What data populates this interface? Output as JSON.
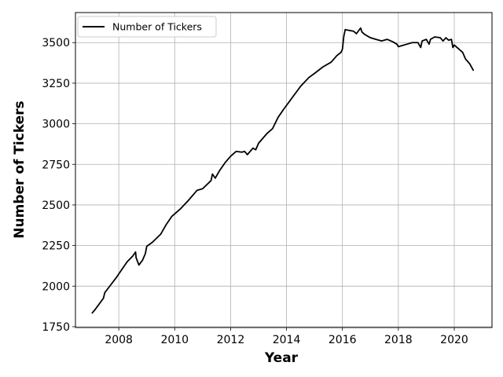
{
  "chart_data": {
    "type": "line",
    "title": "",
    "xlabel": "Year",
    "ylabel": "Number of Tickers",
    "xlim": [
      2006.45,
      2021.35
    ],
    "ylim": [
      1745,
      3685
    ],
    "x_ticks": [
      2008,
      2010,
      2012,
      2014,
      2016,
      2018,
      2020
    ],
    "y_ticks": [
      1750,
      2000,
      2250,
      2500,
      2750,
      3000,
      3250,
      3500
    ],
    "grid": true,
    "legend": {
      "placement": "upper-left",
      "entries": [
        "Number of Tickers"
      ]
    },
    "series": [
      {
        "name": "Number of Tickers",
        "color": "#000000",
        "x": [
          2007.05,
          2007.15,
          2007.3,
          2007.45,
          2007.5,
          2007.7,
          2007.9,
          2008.1,
          2008.3,
          2008.5,
          2008.6,
          2008.62,
          2008.72,
          2008.85,
          2008.95,
          2009.0,
          2009.2,
          2009.5,
          2009.7,
          2009.9,
          2010.2,
          2010.5,
          2010.8,
          2011.0,
          2011.3,
          2011.35,
          2011.45,
          2011.6,
          2011.8,
          2012.0,
          2012.2,
          2012.4,
          2012.5,
          2012.6,
          2012.8,
          2012.9,
          2013.0,
          2013.3,
          2013.5,
          2013.7,
          2013.9,
          2014.2,
          2014.5,
          2014.8,
          2015.0,
          2015.3,
          2015.6,
          2015.8,
          2015.95,
          2016.0,
          2016.05,
          2016.1,
          2016.4,
          2016.5,
          2016.65,
          2016.7,
          2016.8,
          2017.0,
          2017.2,
          2017.4,
          2017.6,
          2017.8,
          2017.95,
          2018.0,
          2018.1,
          2018.3,
          2018.5,
          2018.7,
          2018.8,
          2018.85,
          2019.0,
          2019.1,
          2019.15,
          2019.3,
          2019.5,
          2019.6,
          2019.7,
          2019.8,
          2019.9,
          2019.95,
          2020.0,
          2020.1,
          2020.3,
          2020.4,
          2020.55,
          2020.68
        ],
        "y": [
          1835,
          1855,
          1890,
          1925,
          1960,
          2005,
          2050,
          2100,
          2150,
          2185,
          2210,
          2175,
          2130,
          2160,
          2200,
          2245,
          2270,
          2320,
          2380,
          2430,
          2475,
          2530,
          2590,
          2600,
          2650,
          2690,
          2665,
          2710,
          2760,
          2800,
          2830,
          2825,
          2830,
          2810,
          2850,
          2840,
          2880,
          2940,
          2970,
          3040,
          3090,
          3160,
          3230,
          3285,
          3310,
          3350,
          3380,
          3420,
          3440,
          3460,
          3540,
          3580,
          3570,
          3555,
          3590,
          3565,
          3550,
          3530,
          3520,
          3510,
          3520,
          3505,
          3490,
          3475,
          3480,
          3490,
          3500,
          3500,
          3470,
          3510,
          3520,
          3490,
          3520,
          3535,
          3530,
          3510,
          3530,
          3515,
          3520,
          3470,
          3485,
          3470,
          3440,
          3400,
          3370,
          3330
        ]
      }
    ]
  }
}
